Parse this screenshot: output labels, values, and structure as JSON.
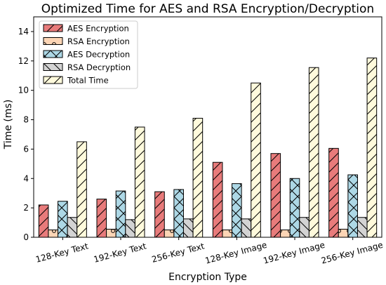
{
  "chart_data": {
    "type": "bar",
    "title": "Optimized Time for AES and RSA Encryption/Decryption",
    "xlabel": "Encryption Type",
    "ylabel": "Time (ms)",
    "ylim": [
      0,
      15
    ],
    "yticks": [
      0,
      2,
      4,
      6,
      8,
      10,
      12,
      14
    ],
    "grid": false,
    "legend_position": "top-left",
    "categories": [
      "128-Key Text",
      "192-Key Text",
      "256-Key Text",
      "128-Key Image",
      "192-Key Image",
      "256-Key Image"
    ],
    "series": [
      {
        "name": "AES Encryption",
        "values": [
          2.2,
          2.6,
          3.1,
          5.1,
          5.7,
          6.05
        ],
        "color": "#e87b7b",
        "hatch": "diagonal"
      },
      {
        "name": "RSA Encryption",
        "values": [
          0.5,
          0.55,
          0.5,
          0.5,
          0.5,
          0.55
        ],
        "color": "#fcd5b5",
        "hatch": "circle"
      },
      {
        "name": "AES Decryption",
        "values": [
          2.45,
          3.15,
          3.25,
          3.65,
          4.0,
          4.25
        ],
        "color": "#add8e6",
        "hatch": "cross"
      },
      {
        "name": "RSA Decryption",
        "values": [
          1.35,
          1.2,
          1.25,
          1.25,
          1.35,
          1.35
        ],
        "color": "#d3d3d3",
        "hatch": "backslash"
      },
      {
        "name": "Total Time",
        "values": [
          6.5,
          7.5,
          8.1,
          10.5,
          11.55,
          12.2
        ],
        "color": "#fffadc",
        "hatch": "diagonal"
      }
    ]
  }
}
